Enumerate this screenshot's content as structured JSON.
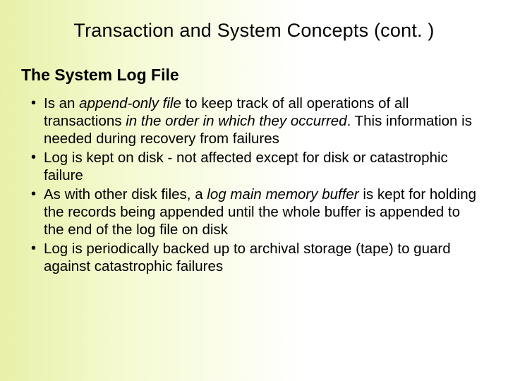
{
  "slide": {
    "title": "Transaction and System Concepts (cont. )",
    "subtitle": "The System Log File",
    "bullets": [
      {
        "segments": [
          {
            "text": "Is an ",
            "italic": false
          },
          {
            "text": "append-only file",
            "italic": true
          },
          {
            "text": " to keep track of all operations of all transactions ",
            "italic": false
          },
          {
            "text": "in the order in which they occurred",
            "italic": true
          },
          {
            "text": ". This information is needed during recovery from failures",
            "italic": false
          }
        ]
      },
      {
        "segments": [
          {
            "text": "Log is kept on disk - not affected except for disk or catastrophic failure",
            "italic": false
          }
        ]
      },
      {
        "segments": [
          {
            "text": "As with other disk files, a ",
            "italic": false
          },
          {
            "text": "log main memory buffer",
            "italic": true
          },
          {
            "text": " is kept for holding the records being appended until the whole buffer is appended to the end of the log file on disk",
            "italic": false
          }
        ]
      },
      {
        "segments": [
          {
            "text": "Log is periodically backed up to archival storage (tape) to guard against catastrophic failures",
            "italic": false
          }
        ]
      }
    ]
  },
  "style": {
    "background_gradient_from": "#e8f0a8",
    "background_gradient_to": "#ffffff",
    "text_color": "#000000",
    "title_fontsize": 27,
    "subtitle_fontsize": 23,
    "body_fontsize": 20.5,
    "font_family": "Arial"
  }
}
